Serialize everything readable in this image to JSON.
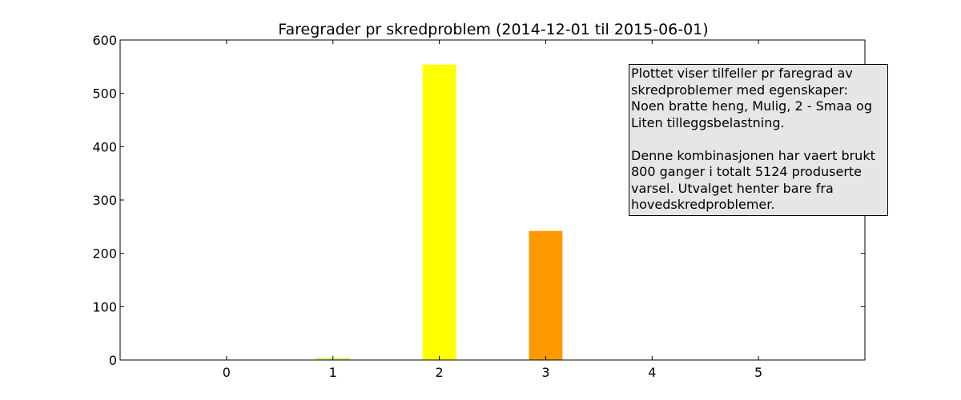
{
  "chart_data": {
    "type": "bar",
    "title": "Faregrader pr skredproblem (2014-12-01 til 2015-06-01)",
    "xlabel": "",
    "ylabel": "",
    "categories": [
      "0",
      "1",
      "2",
      "3",
      "4",
      "5"
    ],
    "values": [
      0,
      4,
      554,
      242,
      0,
      0
    ],
    "bar_colors": [
      "#cccccc",
      "#ccff66",
      "#ffff00",
      "#ff9900",
      "#ff0000",
      "#000000"
    ],
    "xlim": [
      -1,
      6
    ],
    "ylim": [
      0,
      600
    ],
    "yticks": [
      0,
      100,
      200,
      300,
      400,
      500,
      600
    ],
    "xticks": [
      0,
      1,
      2,
      3,
      4,
      5
    ],
    "grid": false,
    "annotation": "Plottet viser tilfeller pr faregrad av\nskredproblemer med egenskaper:\nNoen bratte heng, Mulig, 2 - Smaa og\nLiten tilleggsbelastning.\n\nDenne kombinasjonen har vaert brukt\n800 ganger i totalt 5124 produserte\nvarsel. Utvalget henter bare fra\nhovedskredproblemer."
  }
}
